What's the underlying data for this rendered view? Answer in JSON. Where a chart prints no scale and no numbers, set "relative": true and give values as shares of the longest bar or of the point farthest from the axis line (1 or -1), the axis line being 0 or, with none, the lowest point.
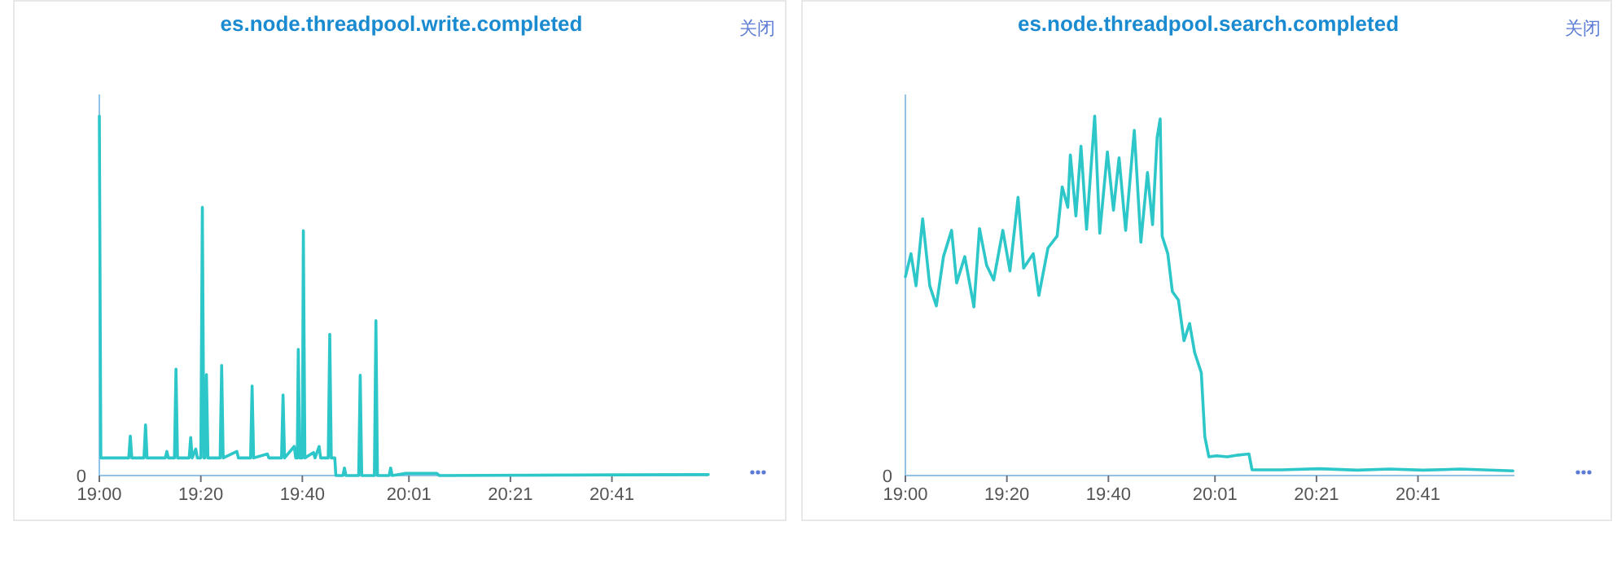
{
  "chart_data": [
    {
      "type": "line",
      "title": "es.node.threadpool.write.completed",
      "relative": true,
      "xlim": [
        19,
        21.0
      ],
      "xticks": [
        {
          "value": 19,
          "label": "19:00"
        },
        {
          "value": 19.3333,
          "label": "19:20"
        },
        {
          "value": 19.6667,
          "label": "19:40"
        },
        {
          "value": 20.0167,
          "label": "20:01"
        },
        {
          "value": 20.35,
          "label": "20:21"
        },
        {
          "value": 20.6833,
          "label": "20:41"
        }
      ],
      "annotations": [
        "0",
        "关闭"
      ],
      "series": [
        {
          "color": "#2ec7c9",
          "x": [
            19.0,
            19.005,
            19.0967,
            19.1017,
            19.1067,
            19.1467,
            19.1517,
            19.1567,
            19.2167,
            19.2217,
            19.2267,
            19.2467,
            19.2517,
            19.2567,
            19.295,
            19.3,
            19.305,
            19.3167,
            19.3217,
            19.3333,
            19.3383,
            19.3433,
            19.3467,
            19.3517,
            19.3567,
            19.3967,
            19.4017,
            19.4067,
            19.4517,
            19.4567,
            19.4967,
            19.5017,
            19.5067,
            19.5517,
            19.5567,
            19.5983,
            19.6033,
            19.6083,
            19.64,
            19.645,
            19.65,
            19.6533,
            19.6583,
            19.6667,
            19.67,
            19.675,
            19.7033,
            19.7083,
            19.7217,
            19.7267,
            19.7517,
            19.7567,
            19.7617,
            19.7733,
            19.7767,
            19.8,
            19.805,
            19.81,
            19.8517,
            19.8567,
            19.8617,
            19.9033,
            19.9083,
            19.9133,
            19.9517,
            19.9567,
            19.9617,
            20.0067,
            20.0567,
            20.1083,
            20.1167,
            21.0
          ],
          "values": [
            1.0,
            0.049,
            0.049,
            0.11,
            0.049,
            0.049,
            0.141,
            0.049,
            0.049,
            0.067,
            0.049,
            0.049,
            0.296,
            0.049,
            0.049,
            0.106,
            0.049,
            0.074,
            0.049,
            0.049,
            0.746,
            0.049,
            0.049,
            0.281,
            0.049,
            0.049,
            0.306,
            0.049,
            0.067,
            0.049,
            0.049,
            0.249,
            0.049,
            0.06,
            0.049,
            0.049,
            0.224,
            0.049,
            0.081,
            0.049,
            0.049,
            0.351,
            0.049,
            0.049,
            0.681,
            0.049,
            0.064,
            0.049,
            0.081,
            0.049,
            0.049,
            0.393,
            0.049,
            0.049,
            0.0,
            0.0,
            0.021,
            0.0,
            0.0,
            0.279,
            0.0,
            0.0,
            0.431,
            0.0,
            0.0,
            0.021,
            0.0,
            0.006,
            0.006,
            0.006,
            0.0,
            0.003
          ]
        }
      ]
    },
    {
      "type": "line",
      "title": "es.node.threadpool.search.completed",
      "relative": true,
      "xlim": [
        19,
        21.0
      ],
      "xticks": [
        {
          "value": 19,
          "label": "19:00"
        },
        {
          "value": 19.3333,
          "label": "19:20"
        },
        {
          "value": 19.6667,
          "label": "19:40"
        },
        {
          "value": 20.0167,
          "label": "20:01"
        },
        {
          "value": 20.35,
          "label": "20:21"
        },
        {
          "value": 20.6833,
          "label": "20:41"
        }
      ],
      "annotations": [
        "0",
        "关闭"
      ],
      "series": [
        {
          "color": "#2ec7c9",
          "x": [
            19.0,
            19.0183,
            19.035,
            19.0567,
            19.08,
            19.1017,
            19.125,
            19.1517,
            19.1683,
            19.195,
            19.225,
            19.2433,
            19.2667,
            19.29,
            19.32,
            19.3433,
            19.37,
            19.3883,
            19.42,
            19.4383,
            19.4683,
            19.4983,
            19.515,
            19.5333,
            19.5417,
            19.56,
            19.5767,
            19.595,
            19.6217,
            19.6383,
            19.6633,
            19.6833,
            19.7017,
            19.7233,
            19.7517,
            19.7733,
            19.795,
            19.8117,
            19.8267,
            19.8367,
            19.8433,
            19.8617,
            19.8767,
            19.8967,
            19.915,
            19.9333,
            19.95,
            19.9717,
            19.9833,
            19.9967,
            20.0217,
            20.0567,
            20.0933,
            20.1283,
            20.1383,
            20.235,
            20.36,
            20.4833,
            20.59,
            20.7,
            20.8217,
            20.995
          ],
          "values": [
            0.553,
            0.617,
            0.528,
            0.714,
            0.528,
            0.472,
            0.609,
            0.682,
            0.536,
            0.609,
            0.469,
            0.687,
            0.585,
            0.544,
            0.682,
            0.569,
            0.774,
            0.577,
            0.617,
            0.501,
            0.633,
            0.666,
            0.803,
            0.746,
            0.892,
            0.722,
            0.916,
            0.685,
            1.0,
            0.674,
            0.9,
            0.738,
            0.884,
            0.682,
            0.96,
            0.649,
            0.843,
            0.698,
            0.94,
            0.992,
            0.666,
            0.617,
            0.512,
            0.488,
            0.375,
            0.423,
            0.342,
            0.286,
            0.108,
            0.052,
            0.055,
            0.052,
            0.057,
            0.06,
            0.016,
            0.016,
            0.019,
            0.015,
            0.018,
            0.015,
            0.018,
            0.013
          ]
        }
      ]
    }
  ]
}
